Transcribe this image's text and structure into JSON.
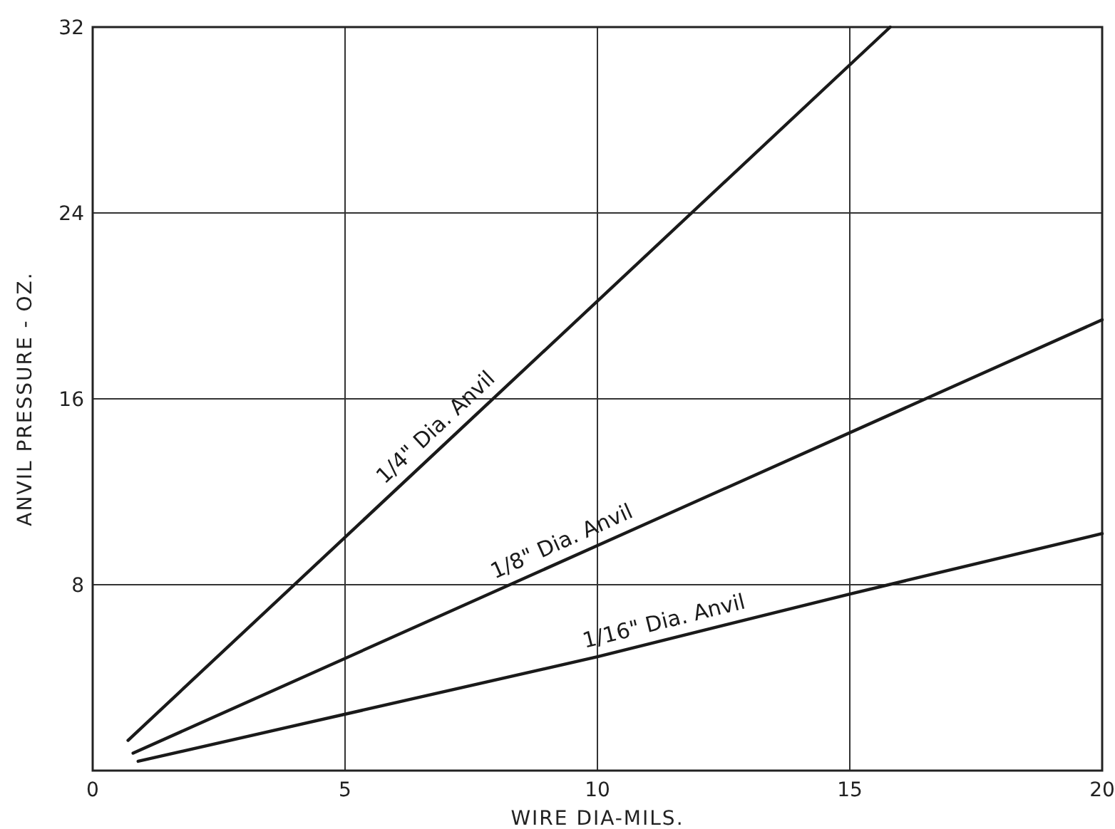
{
  "chart_data": {
    "type": "line",
    "xlabel": "WIRE DIA-MILS.",
    "ylabel": "ANVIL PRESSURE - OZ.",
    "xlim": [
      0,
      20
    ],
    "ylim": [
      0,
      32
    ],
    "xticks": [
      0,
      5,
      10,
      15,
      20
    ],
    "yticks": [
      8,
      16,
      24,
      32
    ],
    "grid": true,
    "line_style": "solid",
    "series": [
      {
        "name": "1/4\" Dia. Anvil",
        "color": "#1a1a1a",
        "x": [
          0.7,
          15.8
        ],
        "values": [
          1.3,
          32
        ]
      },
      {
        "name": "1/8\" Dia. Anvil",
        "color": "#1a1a1a",
        "x": [
          0.8,
          20
        ],
        "values": [
          0.75,
          19.4
        ]
      },
      {
        "name": "1/16\" Dia. Anvil",
        "color": "#1a1a1a",
        "x": [
          0.9,
          10,
          15,
          20
        ],
        "values": [
          0.4,
          4.9,
          7.6,
          10.2
        ]
      }
    ]
  }
}
